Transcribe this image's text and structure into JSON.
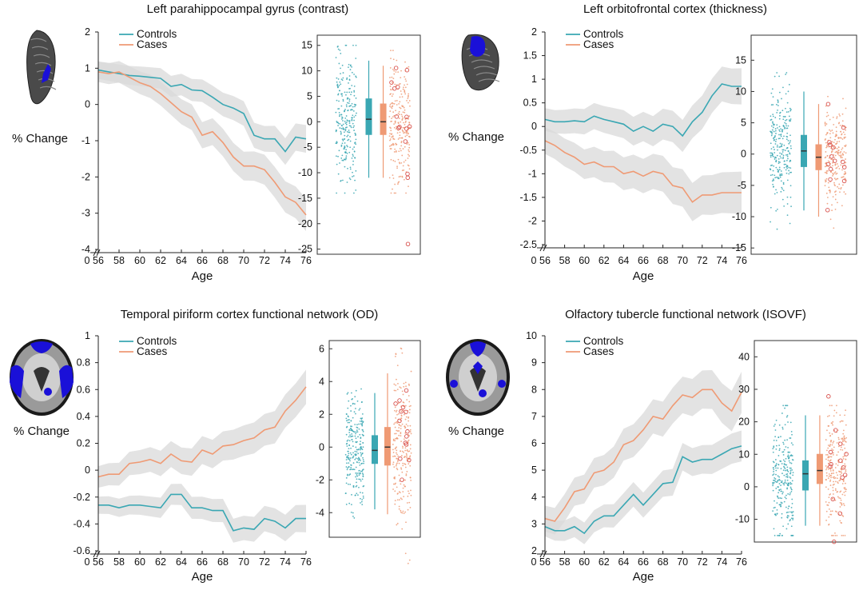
{
  "colors": {
    "controls": "#3aa7b3",
    "cases": "#ef9a74",
    "band": "#d9d9d9",
    "region": "#1a10d8",
    "brain": "#555555"
  },
  "chart_data": [
    {
      "type": "line",
      "title": "Left parahippocampal gyrus (contrast)",
      "ylabel": "% Change",
      "xlabel": "Age",
      "brain_icon": "sagittal-brain-icon",
      "x": [
        56,
        57,
        58,
        59,
        60,
        61,
        62,
        63,
        64,
        65,
        66,
        67,
        68,
        69,
        70,
        71,
        72,
        73,
        74,
        75,
        76
      ],
      "xticks": [
        56,
        58,
        60,
        62,
        64,
        66,
        68,
        70,
        72,
        74,
        76
      ],
      "xlim": [
        56,
        76
      ],
      "ylim": [
        -4,
        2
      ],
      "yticks": [
        2,
        1,
        0,
        -1,
        -2,
        -3,
        -4
      ],
      "legend": [
        "Controls",
        "Cases"
      ],
      "series": [
        {
          "name": "Controls",
          "values": [
            0.95,
            0.9,
            0.85,
            0.8,
            0.78,
            0.75,
            0.72,
            0.5,
            0.55,
            0.4,
            0.38,
            0.2,
            0.0,
            -0.1,
            -0.25,
            -0.85,
            -0.95,
            -0.95,
            -1.3,
            -0.9,
            -0.95
          ],
          "band": 0.3
        },
        {
          "name": "Cases",
          "values": [
            0.9,
            0.85,
            0.9,
            0.75,
            0.6,
            0.5,
            0.3,
            0.05,
            -0.2,
            -0.35,
            -0.85,
            -0.75,
            -1.05,
            -1.45,
            -1.7,
            -1.7,
            -1.8,
            -2.15,
            -2.55,
            -2.7,
            -3.05
          ],
          "band": 0.35
        }
      ],
      "inset": {
        "ylim": [
          -26,
          17
        ],
        "yticks": [
          15,
          10,
          5,
          0,
          -5,
          -10,
          -15,
          -20,
          -25
        ],
        "controls": {
          "median": 0.5,
          "q1": -2.5,
          "q3": 4.5,
          "wmin": -11,
          "wmax": 12
        },
        "cases": {
          "median": 0.0,
          "q1": -2.5,
          "q3": 3.5,
          "wmin": -11,
          "wmax": 11
        },
        "outlier": -24
      }
    },
    {
      "type": "line",
      "title": "Left orbitofrontal cortex (thickness)",
      "ylabel": "% Change",
      "xlabel": "Age",
      "brain_icon": "ventral-brain-icon",
      "x": [
        56,
        57,
        58,
        59,
        60,
        61,
        62,
        63,
        64,
        65,
        66,
        67,
        68,
        69,
        70,
        71,
        72,
        73,
        74,
        75,
        76
      ],
      "xticks": [
        56,
        58,
        60,
        62,
        64,
        66,
        68,
        70,
        72,
        74,
        76
      ],
      "xlim": [
        56,
        76
      ],
      "ylim": [
        -2.5,
        2
      ],
      "yticks": [
        2,
        1.5,
        1,
        0.5,
        0,
        -0.5,
        -1,
        -1.5,
        -2,
        -2.5
      ],
      "legend": [
        "Controls",
        "Cases"
      ],
      "series": [
        {
          "name": "Controls",
          "values": [
            0.15,
            0.1,
            0.1,
            0.12,
            0.1,
            0.22,
            0.15,
            0.1,
            0.05,
            -0.1,
            0.0,
            -0.1,
            0.05,
            0.0,
            -0.2,
            0.1,
            0.3,
            0.65,
            0.9,
            0.85,
            0.85
          ],
          "band": 0.3
        },
        {
          "name": "Cases",
          "values": [
            -0.3,
            -0.4,
            -0.55,
            -0.65,
            -0.8,
            -0.75,
            -0.85,
            -0.85,
            -1.0,
            -0.95,
            -1.05,
            -0.95,
            -1.0,
            -1.25,
            -1.3,
            -1.6,
            -1.45,
            -1.45,
            -1.4,
            -1.4,
            -1.4
          ],
          "band": 0.35
        }
      ],
      "inset": {
        "ylim": [
          -16,
          19
        ],
        "yticks": [
          15,
          10,
          5,
          0,
          -5,
          -10,
          -15
        ],
        "controls": {
          "median": 0.5,
          "q1": -2,
          "q3": 3,
          "wmin": -9,
          "wmax": 10
        },
        "cases": {
          "median": -0.5,
          "q1": -2.5,
          "q3": 1.5,
          "wmin": -10,
          "wmax": 8
        },
        "outlier": null
      }
    },
    {
      "type": "line",
      "title": "Temporal piriform cortex functional network (OD)",
      "ylabel": "% Change",
      "xlabel": "Age",
      "brain_icon": "axial-brain-icon",
      "x": [
        56,
        57,
        58,
        59,
        60,
        61,
        62,
        63,
        64,
        65,
        66,
        67,
        68,
        69,
        70,
        71,
        72,
        73,
        74,
        75,
        76
      ],
      "xticks": [
        56,
        58,
        60,
        62,
        64,
        66,
        68,
        70,
        72,
        74,
        76
      ],
      "xlim": [
        56,
        76
      ],
      "ylim": [
        -0.6,
        1
      ],
      "yticks": [
        1,
        0.8,
        0.6,
        0.4,
        0.2,
        0,
        -0.2,
        -0.4,
        -0.6
      ],
      "legend": [
        "Controls",
        "Cases"
      ],
      "series": [
        {
          "name": "Controls",
          "values": [
            -0.26,
            -0.26,
            -0.28,
            -0.26,
            -0.26,
            -0.27,
            -0.28,
            -0.18,
            -0.18,
            -0.28,
            -0.28,
            -0.3,
            -0.3,
            -0.45,
            -0.43,
            -0.44,
            -0.36,
            -0.38,
            -0.43,
            -0.36,
            -0.36
          ],
          "band": 0.08
        },
        {
          "name": "Cases",
          "values": [
            -0.05,
            -0.03,
            -0.03,
            0.05,
            0.06,
            0.08,
            0.05,
            0.12,
            0.07,
            0.06,
            0.15,
            0.12,
            0.18,
            0.19,
            0.22,
            0.24,
            0.3,
            0.32,
            0.44,
            0.52,
            0.62
          ],
          "band": 0.1
        }
      ],
      "inset": {
        "ylim": [
          -5.5,
          6.5
        ],
        "yticks": [
          6,
          4,
          2,
          0,
          -2,
          -4
        ],
        "controls": {
          "median": -0.2,
          "q1": -1.0,
          "q3": 0.7,
          "wmin": -3.8,
          "wmax": 3.3
        },
        "cases": {
          "median": 0.0,
          "q1": -1.1,
          "q3": 1.2,
          "wmin": -4.1,
          "wmax": 4.5
        },
        "outlier": null
      }
    },
    {
      "type": "line",
      "title": "Olfactory tubercle functional network (ISOVF)",
      "ylabel": "% Change",
      "xlabel": "Age",
      "brain_icon": "axial-brain-icon",
      "x": [
        56,
        57,
        58,
        59,
        60,
        61,
        62,
        63,
        64,
        65,
        66,
        67,
        68,
        69,
        70,
        71,
        72,
        73,
        74,
        75,
        76
      ],
      "xticks": [
        56,
        58,
        60,
        62,
        64,
        66,
        68,
        70,
        72,
        74,
        76
      ],
      "xlim": [
        56,
        76
      ],
      "ylim": [
        2,
        10
      ],
      "yticks": [
        10,
        9,
        8,
        7,
        6,
        5,
        4,
        3,
        2
      ],
      "legend": [
        "Controls",
        "Cases"
      ],
      "series": [
        {
          "name": "Controls",
          "values": [
            2.9,
            2.75,
            2.75,
            2.9,
            2.65,
            3.1,
            3.3,
            3.3,
            3.7,
            4.1,
            3.7,
            4.1,
            4.5,
            4.55,
            5.5,
            5.3,
            5.4,
            5.4,
            5.6,
            5.8,
            5.9
          ],
          "band": 0.45
        },
        {
          "name": "Cases",
          "values": [
            3.2,
            3.1,
            3.6,
            4.2,
            4.3,
            4.9,
            5.0,
            5.3,
            5.95,
            6.1,
            6.5,
            7.0,
            6.9,
            7.4,
            7.8,
            7.7,
            8.0,
            8.0,
            7.5,
            7.2,
            7.9
          ],
          "band": 0.6
        }
      ],
      "inset": {
        "ylim": [
          -17,
          45
        ],
        "yticks": [
          40,
          30,
          20,
          10,
          0,
          -10
        ],
        "controls": {
          "median": 4,
          "q1": -1,
          "q3": 8,
          "wmin": -12,
          "wmax": 22
        },
        "cases": {
          "median": 5,
          "q1": 1,
          "q3": 10,
          "wmin": -12,
          "wmax": 22
        },
        "outlier": null
      }
    }
  ]
}
